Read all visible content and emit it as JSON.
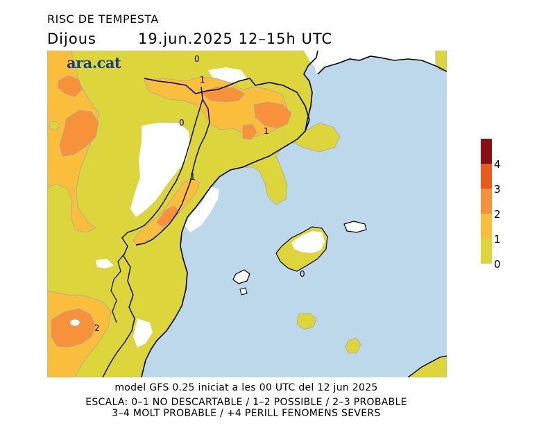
{
  "header": {
    "title": "RISC DE TEMPESTA",
    "day": "Dijous",
    "datetime": "19.jun.2025 12–15h UTC"
  },
  "logo": {
    "text": "ara.cat"
  },
  "map": {
    "sea_color": "#bcd8ea",
    "land_color": "#ffffff",
    "contour_labels": [
      "0",
      "1",
      "0",
      "1",
      "1",
      "0",
      "2"
    ]
  },
  "legend": {
    "levels": [
      {
        "label": "4",
        "color": "#8b0f12"
      },
      {
        "label": "3",
        "color": "#e95a1f"
      },
      {
        "label": "2",
        "color": "#f7923a"
      },
      {
        "label": "1",
        "color": "#fbbd3c"
      },
      {
        "label": "0",
        "color": "#dcd53b"
      }
    ]
  },
  "footer": {
    "line1": "model GFS 0.25 iniciat a les 00 UTC del 12 jun 2025",
    "line2": "ESCALA: 0–1 NO DESCARTABLE / 1–2 POSSIBLE / 2–3 PROBABLE",
    "line3": "3–4 MOLT PROBABLE / +4 PERILL FENOMENS SEVERS"
  }
}
